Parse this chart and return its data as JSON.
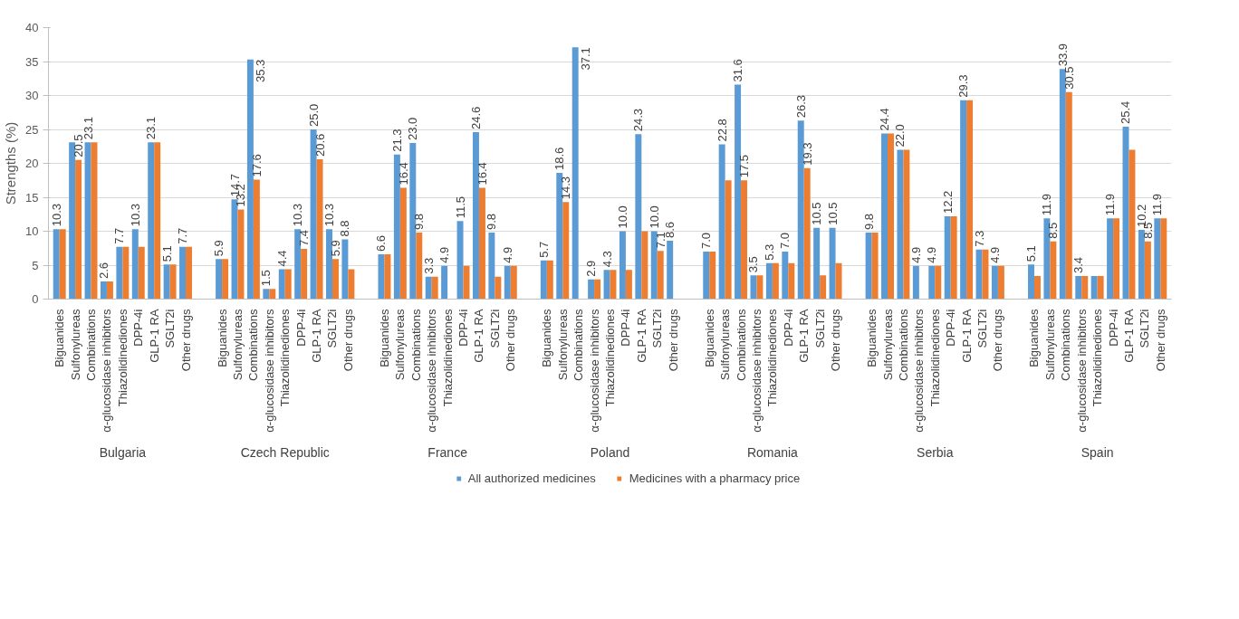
{
  "chart_data": [
    {
      "type": "bar",
      "xlabel": "Bulgaria",
      "ylabel": "Strengths (%)",
      "categories": [
        "Biguanides",
        "Sulfonylureas",
        "Combinations",
        "α-glucosidase inhibitors",
        "Thiazolidinediones",
        "DPP-4i",
        "GLP-1 RA",
        "SGLT2i",
        "Other drugs"
      ],
      "ylim": [
        0,
        40
      ],
      "yticks": [
        0,
        5,
        10,
        15,
        20,
        25,
        30,
        35,
        40
      ],
      "grid": "y",
      "legend": "bottom",
      "series": [
        {
          "name": "All authorized medicines",
          "color": "#5b9bd5",
          "values": [
            10.3,
            23.1,
            23.1,
            2.6,
            7.7,
            10.3,
            23.1,
            5.1,
            7.7
          ],
          "value_labels": [
            "10.3",
            null,
            "23.1",
            "2.6",
            "7.7",
            "10.3",
            "23.1",
            "5.1",
            "7.7"
          ]
        },
        {
          "name": "Medicines with a pharmacy price",
          "color": "#ed7d31",
          "values": [
            10.3,
            20.5,
            23.1,
            2.6,
            7.7,
            7.7,
            23.1,
            5.1,
            7.7
          ],
          "value_labels": [
            null,
            "20.5",
            null,
            null,
            null,
            null,
            null,
            null,
            null
          ]
        }
      ]
    },
    {
      "type": "bar",
      "xlabel": "Czech Republic",
      "categories": [
        "Biguanides",
        "Sulfonylureas",
        "Combinations",
        "α-glucosidase inhibitors",
        "Thiazolidinediones",
        "DPP-4i",
        "GLP-1 RA",
        "SGLT2i",
        "Other drugs"
      ],
      "ylim": [
        0,
        40
      ],
      "grid": "y",
      "tick_labels": "x",
      "series": [
        {
          "color": "#5b9bd5",
          "values": [
            5.9,
            14.7,
            35.3,
            1.5,
            4.4,
            10.3,
            25.0,
            10.3,
            8.8
          ],
          "value_labels": [
            "5.9",
            "14.7",
            "35.3",
            "1.5",
            "4.4",
            "10.3",
            "25.0",
            "10.3",
            "8.8"
          ]
        },
        {
          "color": "#ed7d31",
          "values": [
            5.9,
            13.2,
            17.6,
            1.5,
            4.4,
            7.4,
            20.6,
            5.9,
            4.4
          ],
          "value_labels": [
            null,
            "13.2",
            "17.6",
            null,
            null,
            "7.4",
            "20.6",
            "5.9",
            null
          ]
        }
      ]
    },
    {
      "type": "bar",
      "xlabel": "France",
      "categories": [
        "Biguanides",
        "Sulfonylureas",
        "Combinations",
        "α-glucosidase inhibitors",
        "Thiazolidinediones",
        "DPP-4i",
        "GLP-1 RA",
        "SGLT2i",
        "Other drugs"
      ],
      "ylim": [
        0,
        40
      ],
      "grid": "y",
      "tick_labels": "x",
      "series": [
        {
          "color": "#5b9bd5",
          "values": [
            6.6,
            21.3,
            23.0,
            3.3,
            4.9,
            11.5,
            24.6,
            9.8,
            4.9
          ],
          "value_labels": [
            "6.6",
            "21.3",
            "23.0",
            "3.3",
            "4.9",
            "11.5",
            "24.6",
            "9.8",
            "4.9"
          ]
        },
        {
          "color": "#ed7d31",
          "values": [
            6.6,
            16.4,
            9.8,
            3.3,
            0,
            4.9,
            16.4,
            3.3,
            4.9
          ],
          "value_labels": [
            null,
            "16.4",
            "9.8",
            null,
            null,
            null,
            "16.4",
            null,
            null
          ]
        }
      ]
    },
    {
      "type": "bar",
      "xlabel": "Poland",
      "categories": [
        "Biguanides",
        "Sulfonylureas",
        "Combinations",
        "α-glucosidase inhibitors",
        "Thiazolidinediones",
        "DPP-4i",
        "GLP-1 RA",
        "SGLT2i",
        "Other drugs"
      ],
      "ylim": [
        0,
        40
      ],
      "grid": "y",
      "tick_labels": "x",
      "series": [
        {
          "color": "#5b9bd5",
          "values": [
            5.7,
            18.6,
            37.1,
            2.9,
            4.3,
            10.0,
            24.3,
            10.0,
            8.6
          ],
          "value_labels": [
            "5.7",
            "18.6",
            "37.1",
            "2.9",
            "4.3",
            "10.0",
            "24.3",
            "10.0",
            "8.6"
          ]
        },
        {
          "color": "#ed7d31",
          "values": [
            5.7,
            14.3,
            0,
            2.9,
            4.3,
            4.3,
            10.0,
            7.1,
            0
          ],
          "value_labels": [
            null,
            "14.3",
            null,
            null,
            null,
            null,
            null,
            "7.1",
            null
          ]
        }
      ]
    },
    {
      "type": "bar",
      "xlabel": "Romania",
      "categories": [
        "Biguanides",
        "Sulfonylureas",
        "Combinations",
        "α-glucosidase inhibitors",
        "Thiazolidinediones",
        "DPP-4i",
        "GLP-1 RA",
        "SGLT2i",
        "Other drugs"
      ],
      "ylim": [
        0,
        40
      ],
      "grid": "y",
      "tick_labels": "x",
      "series": [
        {
          "color": "#5b9bd5",
          "values": [
            7.0,
            22.8,
            31.6,
            3.5,
            5.3,
            7.0,
            26.3,
            10.5,
            10.5
          ],
          "value_labels": [
            "7.0",
            "22.8",
            "31.6",
            "3.5",
            "5.3",
            "7.0",
            "26.3",
            "10.5",
            "10.5"
          ]
        },
        {
          "color": "#ed7d31",
          "values": [
            7.0,
            17.5,
            17.5,
            3.5,
            5.3,
            5.3,
            19.3,
            3.5,
            5.3
          ],
          "value_labels": [
            null,
            null,
            "17.5",
            null,
            null,
            null,
            "19.3",
            null,
            null
          ]
        }
      ]
    },
    {
      "type": "bar",
      "xlabel": "Serbia",
      "categories": [
        "Biguanides",
        "Sulfonylureas",
        "Combinations",
        "α-glucosidase inhibitors",
        "Thiazolidinediones",
        "DPP-4i",
        "GLP-1 RA",
        "SGLT2i",
        "Other drugs"
      ],
      "ylim": [
        0,
        40
      ],
      "grid": "y",
      "tick_labels": "x",
      "series": [
        {
          "color": "#5b9bd5",
          "values": [
            9.8,
            24.4,
            22.0,
            4.9,
            4.9,
            12.2,
            29.3,
            7.3,
            4.9
          ],
          "value_labels": [
            "9.8",
            "24.4",
            "22.0",
            "4.9",
            "4.9",
            "12.2",
            "29.3",
            "7.3",
            "4.9"
          ]
        },
        {
          "color": "#ed7d31",
          "values": [
            9.8,
            24.4,
            22.0,
            0,
            4.9,
            12.2,
            29.3,
            7.3,
            4.9
          ]
        }
      ]
    },
    {
      "type": "bar",
      "xlabel": "Spain",
      "categories": [
        "Biguanides",
        "Sulfonylureas",
        "Combinations",
        "α-glucosidase inhibitors",
        "Thiazolidinediones",
        "DPP-4i",
        "GLP-1 RA",
        "SGLT2i",
        "Other drugs"
      ],
      "ylim": [
        0,
        40
      ],
      "grid": "y",
      "tick_labels": "x",
      "series": [
        {
          "color": "#5b9bd5",
          "values": [
            5.1,
            11.9,
            33.9,
            3.4,
            3.4,
            11.9,
            25.4,
            10.2,
            11.9
          ],
          "value_labels": [
            "5.1",
            "11.9",
            "33.9",
            "3.4",
            null,
            "11.9",
            "25.4",
            "10.2",
            "11.9"
          ]
        },
        {
          "color": "#ed7d31",
          "values": [
            3.4,
            8.5,
            30.5,
            3.4,
            3.4,
            11.9,
            22.0,
            8.5,
            11.9
          ],
          "value_labels": [
            null,
            "8.5",
            "30.5",
            null,
            null,
            null,
            null,
            "8.5",
            null
          ]
        }
      ]
    }
  ]
}
